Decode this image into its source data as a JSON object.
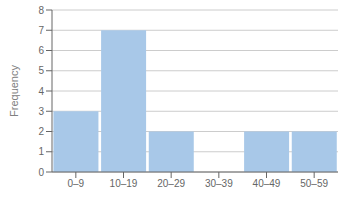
{
  "chart_data": {
    "type": "bar",
    "categories": [
      "0–9",
      "10–19",
      "20–29",
      "30–39",
      "40–49",
      "50–59"
    ],
    "values": [
      3,
      7,
      2,
      0,
      2,
      2
    ],
    "color": "#a8c8e8",
    "ylabel": "Frequency",
    "ylim": [
      0,
      8
    ],
    "yticks": [
      0,
      1,
      2,
      3,
      4,
      5,
      6,
      7,
      8
    ],
    "grid": true
  }
}
